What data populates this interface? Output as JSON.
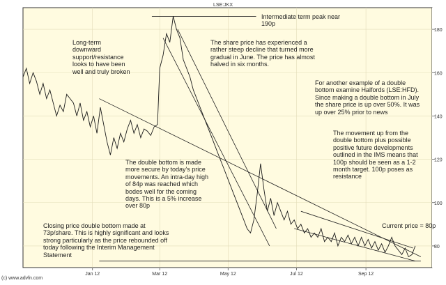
{
  "chart_data": {
    "type": "line",
    "title": "LSE:JKX",
    "source": "(c) www.advfn.com",
    "y_ticks": [
      80,
      100,
      120,
      140,
      160,
      180
    ],
    "ylim": [
      70,
      190
    ],
    "x_ticks": [
      "Jan 12",
      "Mar 12",
      "May 12",
      "Jul 12",
      "Sep 12"
    ],
    "x_tick_days": [
      62,
      122,
      183,
      244,
      306
    ],
    "xlim_days": [
      0,
      365
    ],
    "series": [
      {
        "name": "",
        "x": [
          0,
          3,
          6,
          9,
          12,
          15,
          18,
          21,
          24,
          27,
          30,
          33,
          36,
          39,
          42,
          45,
          48,
          51,
          54,
          57,
          60,
          63,
          66,
          69,
          72,
          75,
          78,
          81,
          84,
          87,
          90,
          93,
          96,
          99,
          102,
          105,
          108,
          111,
          114,
          117,
          120,
          122,
          125,
          128,
          131,
          134,
          137,
          140,
          143,
          146,
          149,
          152,
          155,
          158,
          161,
          164,
          167,
          170,
          173,
          176,
          179,
          182,
          185,
          188,
          191,
          194,
          197,
          200,
          203,
          206,
          209,
          212,
          215,
          218,
          221,
          224,
          227,
          230,
          233,
          236,
          239,
          242,
          245,
          248,
          251,
          254,
          257,
          260,
          263,
          266,
          269,
          272,
          275,
          278,
          281,
          284,
          287,
          290,
          293,
          296,
          299,
          302,
          305,
          308,
          311,
          314,
          317,
          320,
          323,
          326,
          329,
          332,
          335,
          338,
          341,
          344,
          347,
          350
        ],
        "y": [
          158,
          162,
          155,
          160,
          156,
          150,
          155,
          148,
          152,
          146,
          140,
          145,
          142,
          150,
          148,
          146,
          140,
          146,
          138,
          142,
          135,
          140,
          132,
          144,
          136,
          128,
          122,
          130,
          125,
          132,
          128,
          134,
          138,
          132,
          136,
          130,
          134,
          133,
          131,
          135,
          136,
          162,
          168,
          178,
          174,
          186,
          180,
          176,
          166,
          162,
          158,
          152,
          148,
          144,
          140,
          136,
          132,
          128,
          124,
          120,
          116,
          112,
          108,
          104,
          100,
          96,
          92,
          88,
          86,
          92,
          104,
          118,
          106,
          96,
          102,
          94,
          100,
          96,
          92,
          96,
          90,
          92,
          88,
          90,
          86,
          88,
          84,
          86,
          84,
          88,
          82,
          84,
          82,
          86,
          80,
          84,
          82,
          85,
          81,
          84,
          80,
          84,
          80,
          83,
          79,
          82,
          78,
          81,
          77,
          80,
          84,
          80,
          78,
          76,
          79,
          75,
          76,
          80
        ]
      }
    ],
    "reference_levels": [
      {
        "name": "Intermediate term peak",
        "value": 186
      },
      {
        "name": "Double bottom lows",
        "value": 73
      }
    ]
  },
  "annotations": {
    "peak": "Intermediate term peak near\n190p",
    "long_term": "Long-term\ndownward\nsupport/resistance\nlooks to have been\nwell and truly broken",
    "decline": "The share price has experienced a\nrather steep decline that turned more\ngradual in June. The price has almost\nhalved in six months.",
    "halfords": "For another example of a double\nbottom examine Halfords (LSE:HFD).\nSince making a double bottom in July\nthe share price is up over 50%. It was\nup over 25% prior to news",
    "double_bottom": "The double bottom is made\nmore secure by today's price\nmovements. An intra-day high\nof 84p was reached which\nbodes well for the coming\ndays. This is a 5% increase\nover 80p",
    "movement": "The movement up from the\ndouble bottom plus possible\npositive future developments\noutlined in the IMS means that\n100p should be seen as a 1-2\nmonth target. 100p poses as\nresistance",
    "current": "Current price = 80p",
    "closing": "Closing price double bottom made at\n73p/share. This is highly significant and looks\nstrong particularly as the price rebounded off\ntoday following the Interim Management\nStatement"
  },
  "colors": {
    "background": "#fffbe0",
    "line": "#1a1a1a",
    "grid": "#e2dcb8"
  }
}
